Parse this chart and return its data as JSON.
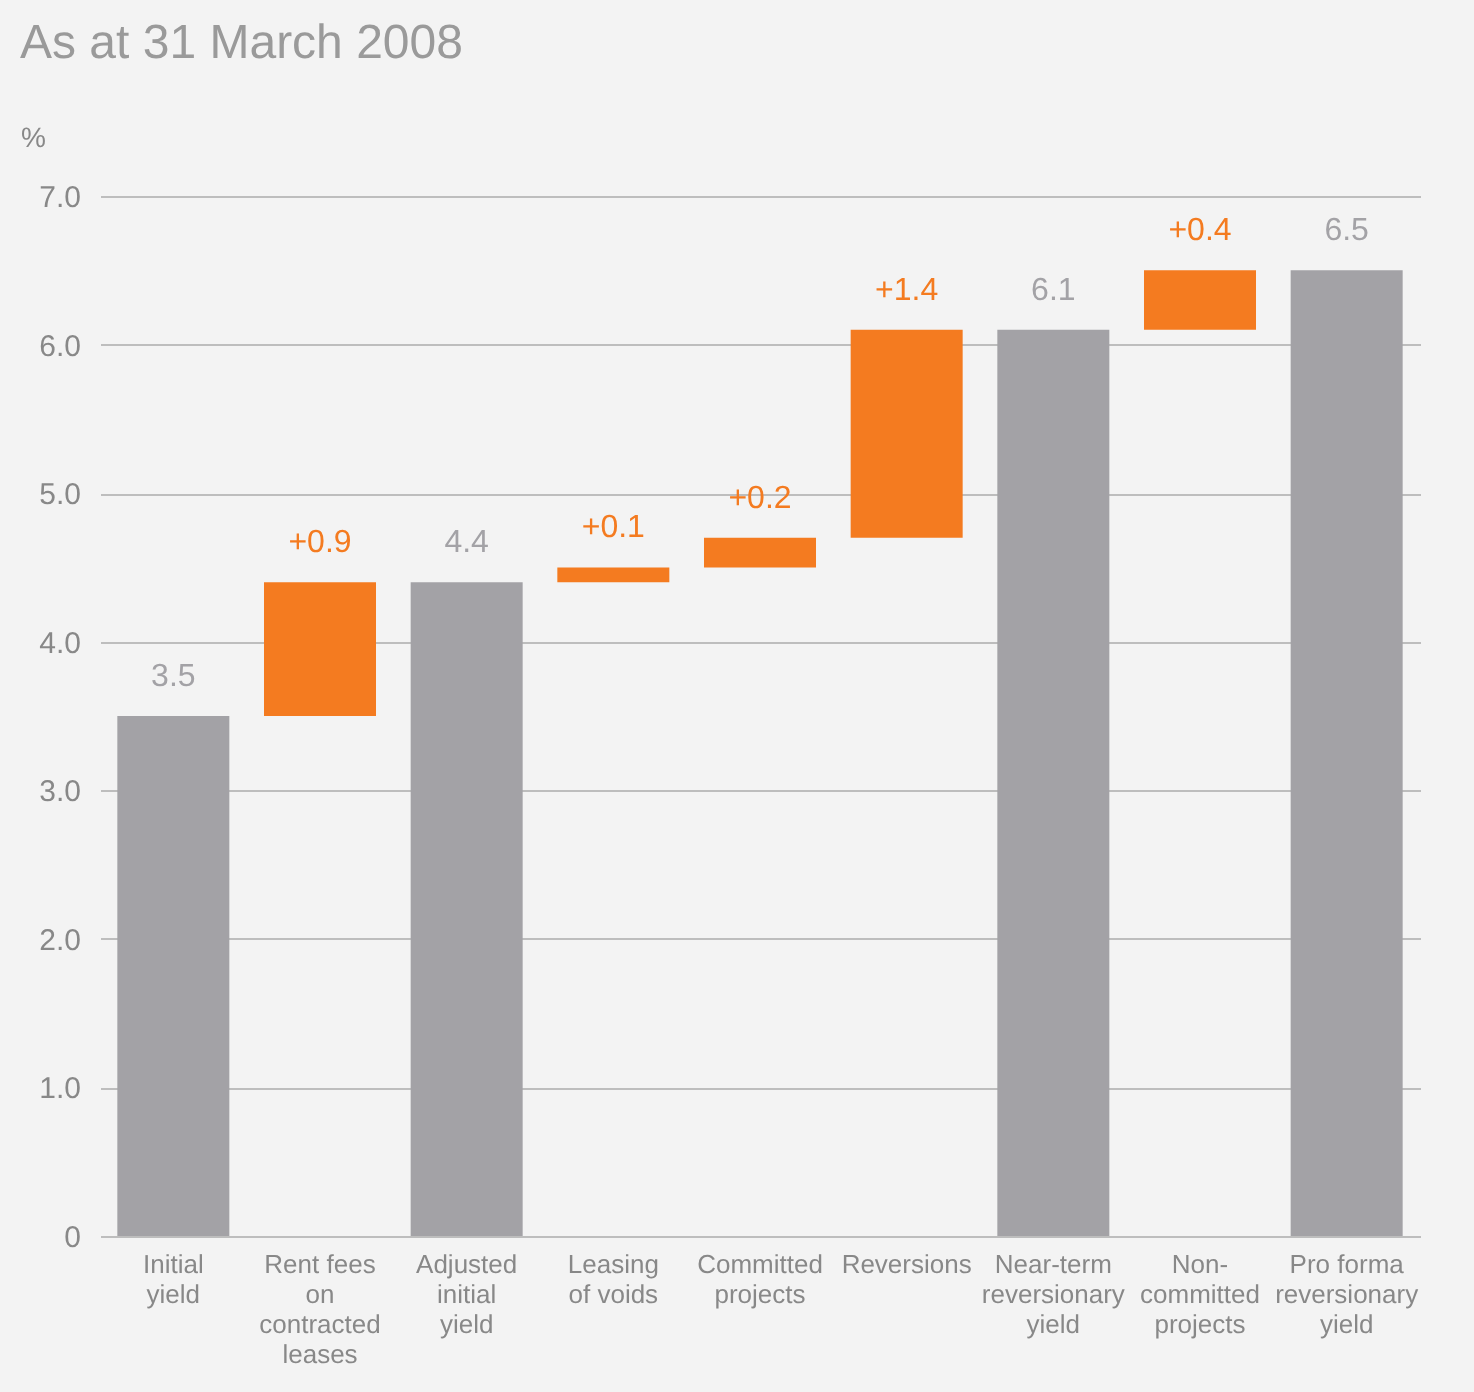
{
  "chart_data": {
    "type": "bar",
    "title": "As at 31 March 2008",
    "ylabel": "%",
    "categories": [
      "Initial yield",
      "Rent fees on contracted leases",
      "Adjusted initial yield",
      "Leasing of voids",
      "Committed projects",
      "Reversions",
      "Near-term reversionary yield",
      "Non-committed projects",
      "Pro forma reversionary yield"
    ],
    "values": [
      3.5,
      0.9,
      4.4,
      0.1,
      0.2,
      1.4,
      6.1,
      0.4,
      6.5
    ],
    "base": [
      0,
      3.5,
      0,
      4.4,
      4.5,
      4.7,
      0,
      6.1,
      0
    ],
    "colors": [
      "#a3a2a6",
      "#f47b20",
      "#a3a2a6",
      "#f47b20",
      "#f47b20",
      "#f47b20",
      "#a3a2a6",
      "#f47b20",
      "#a3a2a6"
    ],
    "value_labels": [
      "3.5",
      "+0.9",
      "4.4",
      "+0.1",
      "+0.2",
      "+1.4",
      "6.1",
      "+0.4",
      "6.5"
    ],
    "ylim": [
      0,
      7.0
    ],
    "yticks": [
      0,
      {
        "value": 1,
        "label": "1.0"
      },
      {
        "value": 2,
        "label": "2.0"
      },
      {
        "value": 3,
        "label": "3.0"
      },
      {
        "value": 4,
        "label": "4.0"
      },
      {
        "value": 5,
        "label": "5.0"
      },
      {
        "value": 6,
        "label": "6.0"
      },
      {
        "value": 7,
        "label": "7.0"
      }
    ],
    "grid": "y"
  }
}
